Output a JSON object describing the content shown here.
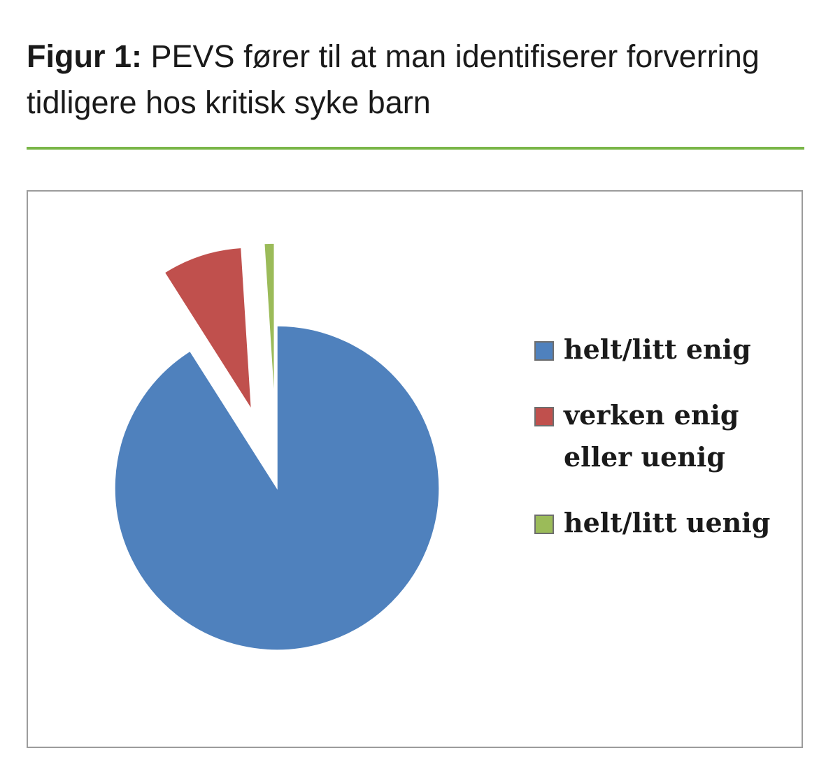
{
  "figure": {
    "label": "Figur 1:",
    "caption": "PEVS fører til at man identifiserer forverring tidligere hos kritisk syke barn",
    "accent_color": "#7ab648"
  },
  "chart_data": {
    "type": "pie",
    "title": "",
    "legend_position": "right",
    "exploded": true,
    "slices": [
      {
        "label": "helt/litt enig",
        "value": 91,
        "color": "#4f81bd"
      },
      {
        "label": "verken enig eller uenig",
        "value": 8,
        "color": "#c0504d"
      },
      {
        "label": "helt/litt uenig",
        "value": 1,
        "color": "#9bbb59"
      }
    ]
  }
}
